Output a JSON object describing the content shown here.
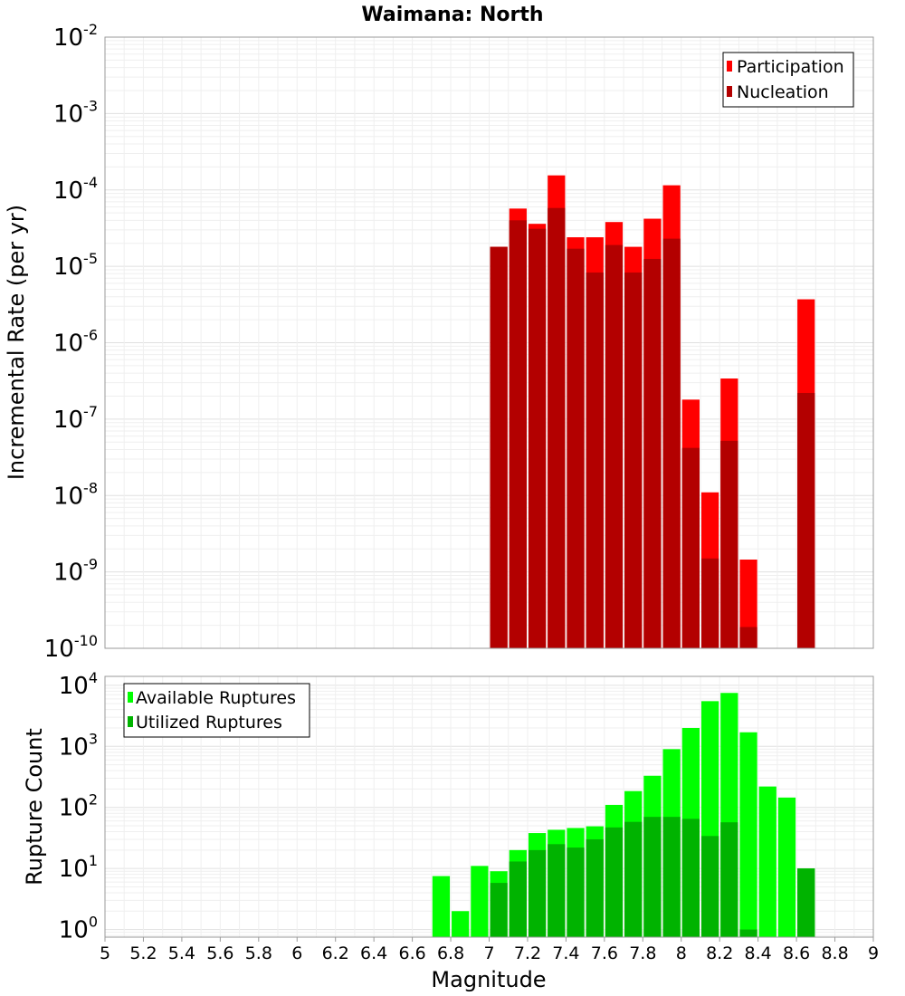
{
  "chart_data": {
    "title": "Waimana: North",
    "xlabel": "Magnitude",
    "xlim": [
      5,
      9
    ],
    "x_ticks": [
      "5",
      "5.2",
      "5.4",
      "5.6",
      "5.8",
      "6",
      "6.2",
      "6.4",
      "6.6",
      "6.8",
      "7",
      "7.2",
      "7.4",
      "7.6",
      "7.8",
      "8",
      "8.2",
      "8.4",
      "8.6",
      "8.8",
      "9"
    ],
    "grid": true,
    "bin_width": 0.1,
    "panels": [
      {
        "type": "bar",
        "scale": "log",
        "ylabel": "Incremental Rate (per yr)",
        "ylim": [
          1e-10,
          0.01
        ],
        "legend_position": "top-right",
        "colors": {
          "participation": "#ff0000",
          "nucleation": "#b30000"
        },
        "series": [
          {
            "name": "Participation",
            "x": [
              7.05,
              7.15,
              7.25,
              7.35,
              7.45,
              7.55,
              7.65,
              7.75,
              7.85,
              7.95,
              8.05,
              8.15,
              8.25,
              8.35,
              8.65
            ],
            "values": [
              1.8e-05,
              5.7e-05,
              3.6e-05,
              0.000155,
              2.4e-05,
              2.4e-05,
              3.8e-05,
              1.8e-05,
              4.2e-05,
              0.000115,
              1.8e-07,
              1.1e-08,
              3.4e-07,
              1.45e-09,
              3.7e-06
            ]
          },
          {
            "name": "Nucleation",
            "x": [
              7.05,
              7.15,
              7.25,
              7.35,
              7.45,
              7.55,
              7.65,
              7.75,
              7.85,
              7.95,
              8.05,
              8.15,
              8.25,
              8.35,
              8.65
            ],
            "values": [
              1.8e-05,
              4e-05,
              3.1e-05,
              5.8e-05,
              1.7e-05,
              8.3e-06,
              1.9e-05,
              8.3e-06,
              1.25e-05,
              2.3e-05,
              4.2e-08,
              1.5e-09,
              5.2e-08,
              1.9e-10,
              2.2e-07
            ]
          }
        ]
      },
      {
        "type": "bar",
        "scale": "log",
        "ylabel": "Rupture Count",
        "ylim": [
          0.75,
          14000
        ],
        "legend_position": "top-left",
        "colors": {
          "available": "#00ff00",
          "utilized": "#00b300"
        },
        "series": [
          {
            "name": "Available Ruptures",
            "x": [
              6.75,
              6.85,
              6.95,
              7.05,
              7.15,
              7.25,
              7.35,
              7.45,
              7.55,
              7.65,
              7.75,
              7.85,
              7.95,
              8.05,
              8.15,
              8.25,
              8.35,
              8.45,
              8.55,
              8.65
            ],
            "values": [
              7.5,
              2,
              11,
              9,
              20,
              38,
              43,
              46,
              49,
              110,
              185,
              330,
              900,
              2000,
              5500,
              7500,
              1700,
              220,
              145,
              10
            ]
          },
          {
            "name": "Utilized Ruptures",
            "x": [
              7.05,
              7.15,
              7.25,
              7.35,
              7.45,
              7.55,
              7.65,
              7.75,
              7.85,
              7.95,
              8.05,
              8.15,
              8.25,
              8.35,
              8.65
            ],
            "values": [
              5.8,
              13,
              20,
              25,
              22,
              30,
              47,
              58,
              70,
              70,
              65,
              34,
              57,
              1,
              10
            ]
          }
        ]
      }
    ]
  }
}
